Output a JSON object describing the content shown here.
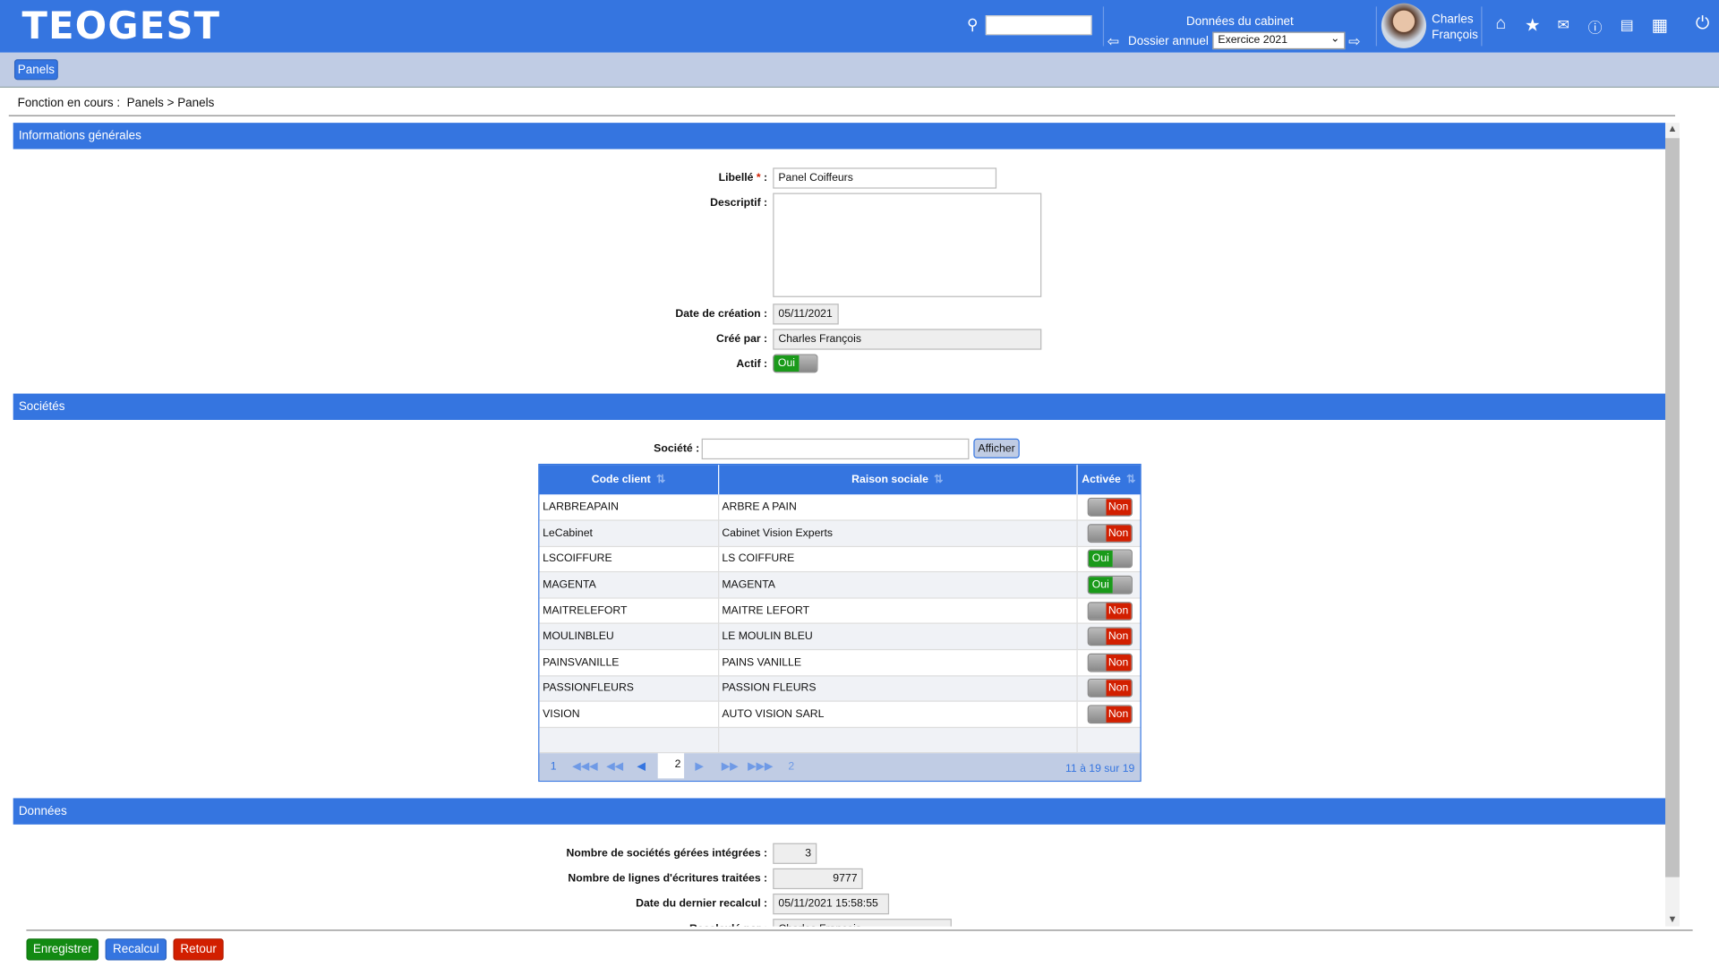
{
  "app": {
    "logo": "TEOGEST"
  },
  "header": {
    "search_placeholder": "",
    "cabinet_title": "Données du cabinet",
    "dossier_label": "Dossier annuel :",
    "dossier_value": "Exercice 2021",
    "user_first": "Charles",
    "user_last": "François",
    "icons": [
      "home-icon",
      "star-icon",
      "mail-icon",
      "help-icon",
      "notepad-icon",
      "apps-grid-icon",
      "power-icon"
    ]
  },
  "subbar": {
    "panels_button": "Panels"
  },
  "breadcrumb": {
    "prefix": "Fonction en cours :",
    "path": "Panels > Panels"
  },
  "general": {
    "title": "Informations générales",
    "libelle_label": "Libellé",
    "required": "*",
    "colon": ":",
    "libelle_value": "Panel Coiffeurs",
    "descriptif_label": "Descriptif :",
    "descriptif_value": "",
    "date_label": "Date de création :",
    "date_value": "05/11/2021",
    "cree_label": "Créé par :",
    "cree_value": "Charles François",
    "actif_label": "Actif :",
    "actif_value": "Oui"
  },
  "societes": {
    "title": "Sociétés",
    "filter_label": "Société :",
    "filter_value": "",
    "afficher": "Afficher",
    "columns": [
      "Code client",
      "Raison sociale",
      "Activée"
    ],
    "rows": [
      {
        "code": "LARBREAPAIN",
        "raison": "ARBRE A PAIN",
        "active": "Non"
      },
      {
        "code": "LeCabinet",
        "raison": "Cabinet Vision Experts",
        "active": "Non"
      },
      {
        "code": "LSCOIFFURE",
        "raison": "LS COIFFURE",
        "active": "Oui"
      },
      {
        "code": "MAGENTA",
        "raison": "MAGENTA",
        "active": "Oui"
      },
      {
        "code": "MAITRELEFORT",
        "raison": "MAITRE LEFORT",
        "active": "Non"
      },
      {
        "code": "MOULINBLEU",
        "raison": "LE MOULIN BLEU",
        "active": "Non"
      },
      {
        "code": "PAINSVANILLE",
        "raison": "PAINS VANILLE",
        "active": "Non"
      },
      {
        "code": "PASSIONFLEURS",
        "raison": "PASSION FLEURS",
        "active": "Non"
      },
      {
        "code": "VISION",
        "raison": "AUTO VISION SARL",
        "active": "Non"
      }
    ],
    "pager": {
      "first_page": "1",
      "current_page": "2",
      "last_page": "2",
      "summary": "11 à 19 sur 19"
    }
  },
  "donnees": {
    "title": "Données",
    "fields": [
      {
        "label": "Nombre de sociétés gérées intégrées :",
        "value": "3"
      },
      {
        "label": "Nombre de lignes d'écritures traitées :",
        "value": "9777"
      },
      {
        "label": "Date du dernier recalcul :",
        "value": "05/11/2021 15:58:55"
      },
      {
        "label": "Recalculé par :",
        "value": "Charles François"
      }
    ]
  },
  "footer": {
    "save": "Enregistrer",
    "recalc": "Recalcul",
    "back": "Retour"
  },
  "colors": {
    "primary": "#3575e0",
    "green": "#1a9a1a",
    "red": "#d21f00"
  }
}
